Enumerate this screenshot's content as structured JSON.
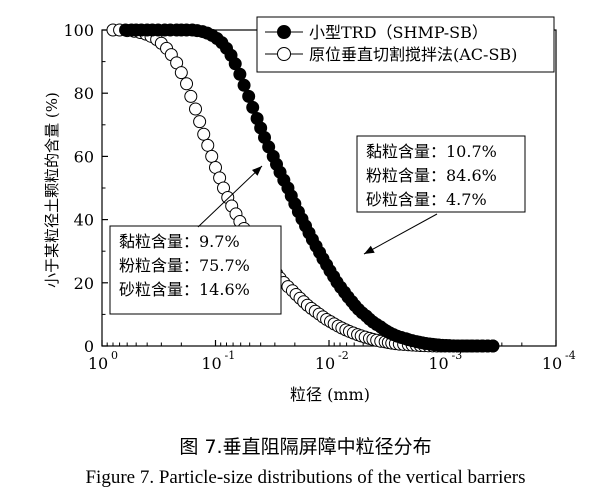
{
  "chart_data": {
    "type": "scatter",
    "xlabel": "粒径 (mm)",
    "ylabel": "小于某粒径土颗粒的含量 (%)",
    "x_scale": "log",
    "x_reversed": true,
    "xlim": [
      1,
      0.0001
    ],
    "ylim": [
      0,
      100
    ],
    "x_ticks": [
      {
        "value": 1,
        "base": "10",
        "exp": "0"
      },
      {
        "value": 0.1,
        "base": "10",
        "exp": "-1"
      },
      {
        "value": 0.01,
        "base": "10",
        "exp": "-2"
      },
      {
        "value": 0.001,
        "base": "10",
        "exp": "-3"
      },
      {
        "value": 0.0001,
        "base": "10",
        "exp": "-4"
      }
    ],
    "y_ticks": [
      "0",
      "20",
      "40",
      "60",
      "80",
      "100"
    ],
    "grid": false,
    "legend_position": "top-right",
    "series": [
      {
        "name": "小型TRD（SHMP-SB）",
        "marker": "filled-circle",
        "x": [
          0.62,
          0.55,
          0.5,
          0.45,
          0.4,
          0.36,
          0.32,
          0.28,
          0.25,
          0.22,
          0.2,
          0.18,
          0.16,
          0.145,
          0.13,
          0.118,
          0.107,
          0.097,
          0.088,
          0.08,
          0.073,
          0.067,
          0.061,
          0.056,
          0.051,
          0.047,
          0.043,
          0.04,
          0.037,
          0.034,
          0.031,
          0.029,
          0.027,
          0.025,
          0.023,
          0.0215,
          0.02,
          0.0186,
          0.0173,
          0.0161,
          0.015,
          0.014,
          0.013,
          0.0121,
          0.0113,
          0.0105,
          0.0098,
          0.0091,
          0.0085,
          0.0079,
          0.0073,
          0.0068,
          0.0063,
          0.0059,
          0.0055,
          0.0051,
          0.0047,
          0.0044,
          0.0041,
          0.0038,
          0.0035,
          0.0033,
          0.0031,
          0.0029,
          0.0027,
          0.0025,
          0.0023,
          0.0021,
          0.002,
          0.00185,
          0.0017,
          0.0016,
          0.0015,
          0.0014,
          0.0013,
          0.00122,
          0.00115,
          0.00108,
          0.001,
          0.00093,
          0.00087,
          0.0008,
          0.00074,
          0.00068,
          0.00062,
          0.00056,
          0.0005,
          0.00045,
          0.0004,
          0.00036
        ],
        "y": [
          100,
          100,
          100,
          100,
          100,
          100,
          100,
          100,
          100,
          100,
          100,
          100,
          100,
          99.8,
          99.5,
          99,
          98.3,
          97.3,
          96,
          94.2,
          92,
          89.3,
          86,
          82.5,
          79,
          75.5,
          72,
          69,
          66,
          63,
          60,
          57.5,
          55,
          52.5,
          50,
          47.5,
          45,
          42.5,
          40.2,
          38,
          35.8,
          33.7,
          31.6,
          29.6,
          27.6,
          25.7,
          23.8,
          22,
          20.2,
          18.6,
          17,
          15.5,
          14.1,
          12.8,
          11.6,
          10.5,
          9.5,
          8.5,
          7.6,
          6.8,
          6,
          5.3,
          4.7,
          4.1,
          3.6,
          3.1,
          2.7,
          2.3,
          2,
          1.7,
          1.4,
          1.2,
          1,
          0.8,
          0.65,
          0.5,
          0.4,
          0.3,
          0.2,
          0.15,
          0.1,
          0.05,
          0.02,
          0,
          0,
          0,
          0,
          0,
          0,
          0
        ]
      },
      {
        "name": "原位垂直切割搅拌法(AC-SB)",
        "marker": "open-circle",
        "x": [
          0.8,
          0.7,
          0.6,
          0.52,
          0.46,
          0.41,
          0.37,
          0.33,
          0.3,
          0.27,
          0.245,
          0.22,
          0.2,
          0.18,
          0.165,
          0.15,
          0.138,
          0.127,
          0.117,
          0.108,
          0.1,
          0.092,
          0.085,
          0.078,
          0.072,
          0.066,
          0.061,
          0.056,
          0.052,
          0.048,
          0.044,
          0.04,
          0.037,
          0.034,
          0.031,
          0.029,
          0.027,
          0.025,
          0.023,
          0.021,
          0.0195,
          0.018,
          0.0167,
          0.0155,
          0.0143,
          0.0132,
          0.0122,
          0.0113,
          0.0105,
          0.0097,
          0.009,
          0.0083,
          0.0077,
          0.0071,
          0.0066,
          0.0061,
          0.0056,
          0.0052,
          0.0048,
          0.0044,
          0.0041,
          0.0038,
          0.0035,
          0.0032,
          0.003,
          0.0028,
          0.0026,
          0.0024,
          0.0022,
          0.002,
          0.00185,
          0.0017,
          0.00157,
          0.00145,
          0.00133,
          0.00122,
          0.00112,
          0.00103,
          0.00095,
          0.00087,
          0.0008,
          0.00073,
          0.00066,
          0.0006,
          0.00054,
          0.00049,
          0.00044,
          0.0004,
          0.00036
        ],
        "y": [
          100,
          100,
          99.8,
          99.6,
          99.2,
          98.7,
          98,
          97,
          95.8,
          94.2,
          92.2,
          89.6,
          86.5,
          83,
          79,
          75,
          71,
          67,
          63.5,
          60,
          56.5,
          53.2,
          50,
          47,
          44.3,
          41.8,
          39.4,
          37.2,
          35.2,
          33.2,
          31.3,
          29.5,
          27.8,
          26.1,
          24.5,
          23,
          21.5,
          20.1,
          18.8,
          17.5,
          16.3,
          15.1,
          14,
          12.9,
          11.9,
          11,
          10.1,
          9.2,
          8.4,
          7.7,
          7,
          6.3,
          5.7,
          5.1,
          4.6,
          4.1,
          3.6,
          3.2,
          2.8,
          2.4,
          2.1,
          1.8,
          1.5,
          1.3,
          1.1,
          0.9,
          0.75,
          0.6,
          0.5,
          0.4,
          0.3,
          0.22,
          0.16,
          0.1,
          0.06,
          0.03,
          0.01,
          0,
          0,
          0,
          0,
          0,
          0,
          0,
          0,
          0,
          0,
          0,
          0
        ]
      }
    ],
    "annotations": [
      {
        "lines": [
          "黏粒含量：10.7%",
          "粉粒含量：84.6%",
          "砂粒含量：4.7%"
        ],
        "points_to": "小型TRD（SHMP-SB）"
      },
      {
        "lines": [
          "黏粒含量：9.7%",
          "粉粒含量：75.7%",
          "砂粒含量：14.6%"
        ],
        "points_to": "原位垂直切割搅拌法(AC-SB)"
      }
    ]
  },
  "caption": {
    "chinese": "图 7.垂直阻隔屏障中粒径分布",
    "english": "Figure 7. Particle-size distributions of the vertical barriers"
  },
  "colors": {
    "ink": "#000000",
    "background": "#ffffff"
  }
}
